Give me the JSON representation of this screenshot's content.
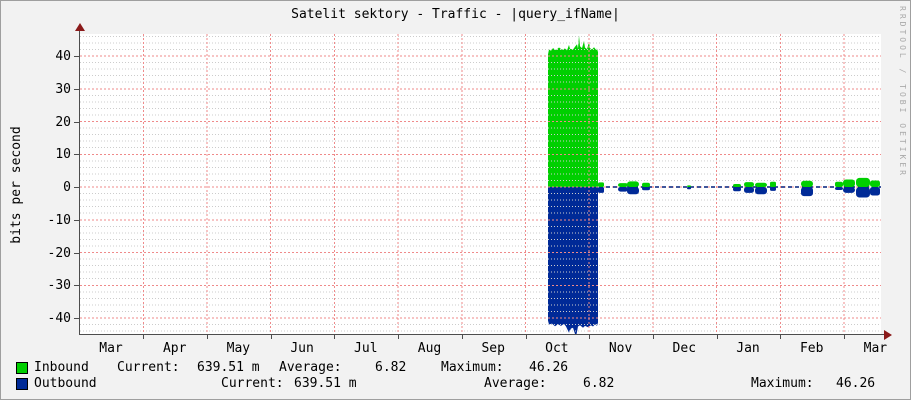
{
  "title": "Satelit sektory - Traffic - |query_ifName|",
  "watermark": "RRDTOOL / TOBI OETIKER",
  "y_axis": {
    "label": "bits per second",
    "ticks": [
      40,
      30,
      20,
      10,
      0,
      -10,
      -20,
      -30,
      -40
    ]
  },
  "x_axis": {
    "months": [
      "Mar",
      "Apr",
      "May",
      "Jun",
      "Jul",
      "Aug",
      "Sep",
      "Oct",
      "Nov",
      "Dec",
      "Jan",
      "Feb",
      "Mar"
    ]
  },
  "legend": {
    "rows": [
      {
        "series": "Inbound",
        "color": "#00cf00",
        "current_label": "Current:",
        "current": "639.51 m",
        "average_label": "Average:",
        "average": "6.82",
        "maximum_label": "Maximum:",
        "maximum": "46.26"
      },
      {
        "series": "Outbound",
        "color": "#002a97",
        "current_label": "Current:",
        "current": "639.51 m",
        "average_label": "Average:",
        "average": "6.82",
        "maximum_label": "Maximum:",
        "maximum": "46.26"
      }
    ]
  },
  "chart_data": {
    "type": "area",
    "title": "Satelit sektory - Traffic - |query_ifName|",
    "ylabel": "bits per second",
    "ylim": [
      -47,
      47
    ],
    "y_ticks": [
      40,
      30,
      20,
      10,
      0,
      -10,
      -20,
      -30,
      -40
    ],
    "x_months": [
      "Mar",
      "Apr",
      "May",
      "Jun",
      "Jul",
      "Aug",
      "Sep",
      "Oct",
      "Nov",
      "Dec",
      "Jan",
      "Feb",
      "Mar"
    ],
    "grid": "minor dotted gray every 2 units, major dashed red every 10 units and at month boundaries",
    "legend_position": "bottom",
    "series": [
      {
        "name": "Inbound",
        "color": "#00cf00",
        "current": "639.51 m",
        "average": 6.82,
        "maximum": 46.26
      },
      {
        "name": "Outbound",
        "color": "#002a97",
        "current": "639.51 m",
        "average": 6.82,
        "maximum": 46.26
      }
    ],
    "main_burst": {
      "note": "sustained symmetric in/out burst around mid-October, ~42 bit/s average, peak 46.26",
      "x1": 468,
      "x2": 518,
      "level": 42,
      "peak": 46.26,
      "top_profile": [
        [
          468,
          40.5
        ],
        [
          469,
          42.0
        ],
        [
          471,
          41.6
        ],
        [
          473,
          42.4
        ],
        [
          476,
          41.8
        ],
        [
          479,
          42.6
        ],
        [
          482,
          41.9
        ],
        [
          485,
          42.3
        ],
        [
          487,
          41.7
        ],
        [
          489,
          43.4
        ],
        [
          490,
          42.2
        ],
        [
          493,
          42.0
        ],
        [
          495,
          42.8
        ],
        [
          497,
          43.6
        ],
        [
          498,
          42.2
        ],
        [
          499,
          46.26
        ],
        [
          500,
          43.0
        ],
        [
          502,
          42.4
        ],
        [
          504,
          44.6
        ],
        [
          505,
          42.6
        ],
        [
          507,
          42.1
        ],
        [
          509,
          44.2
        ],
        [
          510,
          42.4
        ],
        [
          512,
          42.0
        ],
        [
          514,
          42.7
        ],
        [
          516,
          41.9
        ],
        [
          517,
          42.3
        ],
        [
          518,
          41.2
        ]
      ],
      "bottom_profile": [
        [
          468,
          -40.8
        ],
        [
          469,
          -42.0
        ],
        [
          472,
          -41.7
        ],
        [
          475,
          -42.5
        ],
        [
          478,
          -41.9
        ],
        [
          481,
          -42.4
        ],
        [
          484,
          -41.8
        ],
        [
          486,
          -42.6
        ],
        [
          489,
          -44.5
        ],
        [
          491,
          -43.2
        ],
        [
          493,
          -43.0
        ],
        [
          496,
          -45.8
        ],
        [
          498,
          -42.6
        ],
        [
          500,
          -42.2
        ],
        [
          503,
          -43.0
        ],
        [
          505,
          -42.4
        ],
        [
          508,
          -42.8
        ],
        [
          511,
          -42.2
        ],
        [
          513,
          -42.6
        ],
        [
          515,
          -41.9
        ],
        [
          517,
          -42.4
        ],
        [
          518,
          -41.4
        ]
      ]
    },
    "minor_bursts": [
      {
        "x": 521,
        "w": 6,
        "up": 1.4,
        "down": 1.8
      },
      {
        "x": 543,
        "w": 10,
        "up": 1.2,
        "down": 1.4
      },
      {
        "x": 553,
        "w": 12,
        "up": 1.7,
        "down": 2.2
      },
      {
        "x": 566,
        "w": 8,
        "up": 1.3,
        "down": 1.0
      },
      {
        "x": 609,
        "w": 4,
        "up": 0.5,
        "down": 0.7
      },
      {
        "x": 657,
        "w": 8,
        "up": 0.9,
        "down": 1.3
      },
      {
        "x": 669,
        "w": 10,
        "up": 1.5,
        "down": 1.8
      },
      {
        "x": 681,
        "w": 12,
        "up": 1.3,
        "down": 2.2
      },
      {
        "x": 693,
        "w": 6,
        "up": 1.6,
        "down": 1.2
      },
      {
        "x": 727,
        "w": 12,
        "up": 1.9,
        "down": 2.8
      },
      {
        "x": 759,
        "w": 8,
        "up": 1.6,
        "down": 0.9
      },
      {
        "x": 769,
        "w": 12,
        "up": 2.3,
        "down": 1.8
      },
      {
        "x": 783,
        "w": 14,
        "up": 2.8,
        "down": 3.2
      },
      {
        "x": 795,
        "w": 10,
        "up": 2.0,
        "down": 2.6
      }
    ],
    "zero_trace": {
      "x1": 519,
      "x2": 801
    }
  },
  "colors": {
    "inbound": "#00cf00",
    "outbound": "#002a97",
    "grid_major": "#ef8a8a",
    "grid_minor": "#cccccc",
    "axis": "#4d4d4d",
    "arrow": "#8b1a1a",
    "zero_trace": "#001f7a",
    "canvas": "#f2f2f2",
    "plot_bg": "#ffffff"
  }
}
